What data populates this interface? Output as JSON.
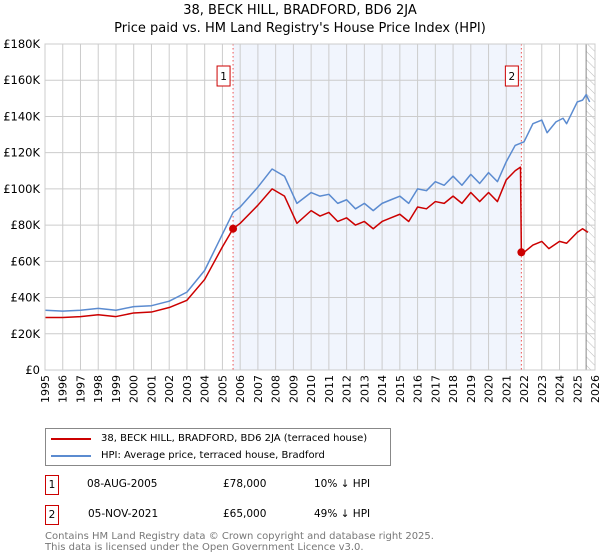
{
  "chart_data": {
    "type": "line",
    "title": "38, BECK HILL, BRADFORD, BD6 2JA",
    "subtitle": "Price paid vs. HM Land Registry's House Price Index (HPI)",
    "xlim": [
      1995,
      2026
    ],
    "ylim": [
      0,
      180000
    ],
    "yticks": [
      0,
      20000,
      40000,
      60000,
      80000,
      100000,
      120000,
      140000,
      160000,
      180000
    ],
    "ytick_labels": [
      "£0",
      "£20K",
      "£40K",
      "£60K",
      "£80K",
      "£100K",
      "£120K",
      "£140K",
      "£160K",
      "£180K"
    ],
    "xticks": [
      "1995",
      "1996",
      "1997",
      "1998",
      "1999",
      "2000",
      "2001",
      "2002",
      "2003",
      "2004",
      "2005",
      "2006",
      "2007",
      "2008",
      "2009",
      "2010",
      "2011",
      "2012",
      "2013",
      "2014",
      "2015",
      "2016",
      "2017",
      "2018",
      "2019",
      "2020",
      "2021",
      "2022",
      "2023",
      "2024",
      "2025",
      "2026"
    ],
    "grid": true,
    "shaded_range": [
      2005.6,
      2021.85
    ],
    "hatched_from": 2025.5,
    "series": [
      {
        "name": "38, BECK HILL, BRADFORD, BD6 2JA (terraced house)",
        "color": "#cc0000",
        "x": [
          1995,
          1996,
          1997,
          1998,
          1999,
          2000,
          2001,
          2002,
          2003,
          2004,
          2005,
          2005.6,
          2006,
          2007,
          2007.8,
          2008.5,
          2009.2,
          2010,
          2010.5,
          2011,
          2011.5,
          2012,
          2012.5,
          2013,
          2013.5,
          2014,
          2014.5,
          2015,
          2015.5,
          2016,
          2016.5,
          2017,
          2017.5,
          2018,
          2018.5,
          2019,
          2019.5,
          2020,
          2020.5,
          2021,
          2021.5,
          2021.8,
          2021.85,
          2022,
          2022.5,
          2023,
          2023.4,
          2024,
          2024.4,
          2025,
          2025.3,
          2025.6
        ],
        "y": [
          29000,
          29000,
          29500,
          30500,
          29500,
          31500,
          32000,
          34500,
          38500,
          50000,
          68000,
          78000,
          81000,
          91000,
          100000,
          96000,
          81000,
          88000,
          85000,
          87000,
          82000,
          84000,
          80000,
          82000,
          78000,
          82000,
          84000,
          86000,
          82000,
          90000,
          89000,
          93000,
          92000,
          96000,
          92000,
          98000,
          93000,
          98000,
          93000,
          105000,
          110000,
          112000,
          65000,
          65000,
          69000,
          71000,
          67000,
          71000,
          70000,
          76000,
          78000,
          76000
        ]
      },
      {
        "name": "HPI: Average price, terraced house, Bradford",
        "color": "#5b8bd0",
        "x": [
          1995,
          1996,
          1997,
          1998,
          1999,
          2000,
          2001,
          2002,
          2003,
          2004,
          2005,
          2005.6,
          2006,
          2007,
          2007.8,
          2008.5,
          2009.2,
          2010,
          2010.5,
          2011,
          2011.5,
          2012,
          2012.5,
          2013,
          2013.5,
          2014,
          2014.5,
          2015,
          2015.5,
          2016,
          2016.5,
          2017,
          2017.5,
          2018,
          2018.5,
          2019,
          2019.5,
          2020,
          2020.5,
          2021,
          2021.5,
          2022,
          2022.5,
          2023,
          2023.3,
          2023.8,
          2024.2,
          2024.4,
          2025,
          2025.3,
          2025.5,
          2025.7
        ],
        "y": [
          33000,
          32500,
          33000,
          34000,
          33000,
          35000,
          35500,
          38000,
          43000,
          55000,
          75000,
          87000,
          90000,
          101000,
          111000,
          107000,
          92000,
          98000,
          96000,
          97000,
          92000,
          94000,
          89000,
          92000,
          88000,
          92000,
          94000,
          96000,
          92000,
          100000,
          99000,
          104000,
          102000,
          107000,
          102000,
          108000,
          103000,
          109000,
          104000,
          115000,
          124000,
          126000,
          136000,
          138000,
          131000,
          137000,
          139000,
          136000,
          148000,
          149000,
          152000,
          148000
        ]
      }
    ],
    "sales": [
      {
        "label": "1",
        "x": 2005.6,
        "y": 78000,
        "date": "08-AUG-2005",
        "price": "£78,000",
        "hpi_diff": "10% ↓ HPI"
      },
      {
        "label": "2",
        "x": 2021.85,
        "y": 65000,
        "date": "05-NOV-2021",
        "price": "£65,000",
        "hpi_diff": "49% ↓ HPI"
      }
    ]
  },
  "footer": {
    "line1": "Contains HM Land Registry data © Crown copyright and database right 2025.",
    "line2": "This data is licensed under the Open Government Licence v3.0."
  }
}
